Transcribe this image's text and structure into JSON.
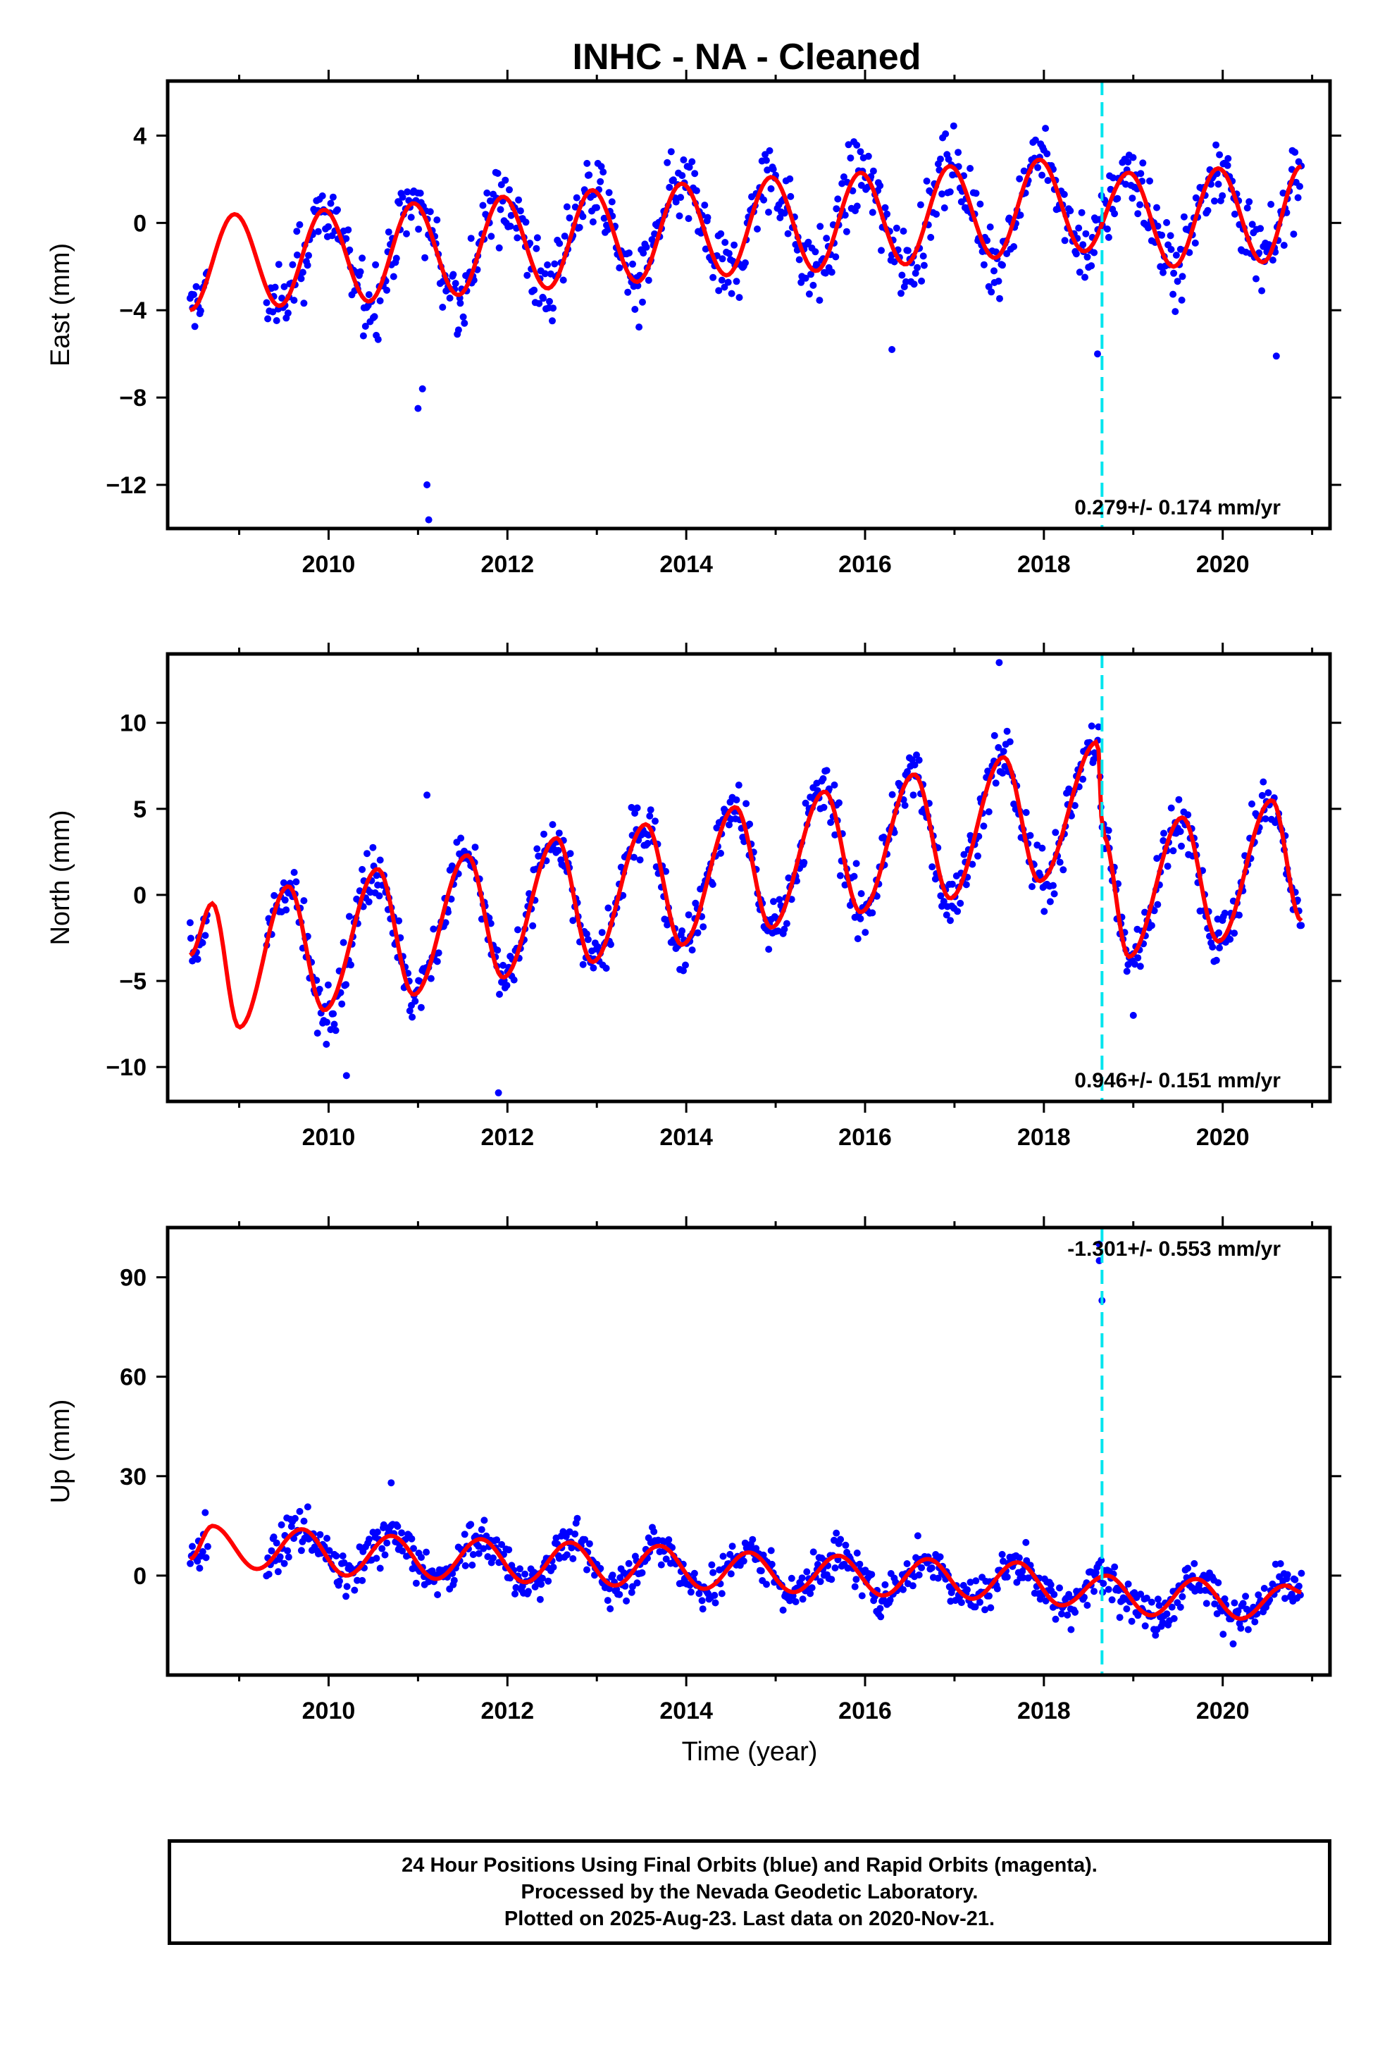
{
  "title": "INHC  - NA - Cleaned",
  "xlabel": "Time (year)",
  "footer": {
    "line1": "24 Hour Positions Using Final Orbits (blue) and Rapid Orbits (magenta).",
    "line2": "Processed by the Nevada Geodetic Laboratory.",
    "line3": "Plotted on 2025-Aug-23. Last data on 2020-Nov-21."
  },
  "colors": {
    "data": "#0000ff",
    "model": "#ff0000",
    "event_line": "#00e5ee"
  },
  "chart_data": [
    {
      "type": "scatter",
      "ylabel": "East (mm)",
      "rate": "0.279+/- 0.174 mm/yr",
      "xlim": [
        2008.2,
        2021.2
      ],
      "ylim": [
        -14,
        6.5
      ],
      "x_ticks": [
        2010,
        2012,
        2014,
        2016,
        2018,
        2020
      ],
      "y_ticks": [
        4,
        0,
        -4,
        -8,
        -12
      ],
      "event_line_x": 2018.65,
      "data_start": 2008.45,
      "data_end": 2020.88,
      "gap": [
        2008.65,
        2009.3
      ],
      "model": {
        "x": [
          2008.45,
          2008.95,
          2009.45,
          2009.95,
          2010.45,
          2010.95,
          2011.45,
          2011.95,
          2012.45,
          2012.95,
          2013.45,
          2013.95,
          2014.45,
          2014.95,
          2015.45,
          2015.95,
          2016.45,
          2016.95,
          2017.45,
          2017.95,
          2018.45,
          2018.95,
          2019.45,
          2019.95,
          2020.45,
          2020.88
        ],
        "y": [
          -4.0,
          0.4,
          -3.8,
          0.6,
          -3.6,
          0.9,
          -3.3,
          1.2,
          -3.0,
          1.5,
          -2.7,
          1.8,
          -2.4,
          2.1,
          -2.2,
          2.3,
          -1.9,
          2.6,
          -1.6,
          2.9,
          -1.3,
          2.3,
          -2.0,
          2.5,
          -1.8,
          2.6
        ]
      },
      "outliers": {
        "x": [
          2011.0,
          2011.05,
          2011.1,
          2011.12,
          2018.6,
          2016.3,
          2020.6
        ],
        "y": [
          -8.5,
          -7.6,
          -12.0,
          -13.6,
          -6.0,
          -5.8,
          -6.1
        ]
      }
    },
    {
      "type": "scatter",
      "ylabel": "North (mm)",
      "rate": "0.946+/- 0.151 mm/yr",
      "xlim": [
        2008.2,
        2021.2
      ],
      "ylim": [
        -12,
        14
      ],
      "x_ticks": [
        2010,
        2012,
        2014,
        2016,
        2018,
        2020
      ],
      "y_ticks": [
        10,
        5,
        0,
        -5,
        -10
      ],
      "event_line_x": 2018.65,
      "data_start": 2008.45,
      "data_end": 2020.88,
      "gap": [
        2008.65,
        2009.3
      ],
      "model": {
        "x": [
          2008.45,
          2008.7,
          2009.0,
          2009.55,
          2009.95,
          2010.55,
          2010.95,
          2011.55,
          2011.95,
          2012.55,
          2012.95,
          2013.55,
          2013.95,
          2014.55,
          2014.95,
          2015.55,
          2015.95,
          2016.55,
          2016.95,
          2017.55,
          2017.95,
          2018.6,
          2018.66,
          2018.95,
          2019.55,
          2019.95,
          2020.55,
          2020.88
        ],
        "y": [
          -3.5,
          -0.5,
          -7.7,
          0.5,
          -6.7,
          1.5,
          -5.8,
          2.3,
          -4.8,
          3.3,
          -3.9,
          4.1,
          -2.9,
          5.1,
          -1.9,
          6.0,
          -1.0,
          7.0,
          -0.2,
          8.0,
          0.8,
          8.9,
          3.5,
          -3.6,
          4.5,
          -2.7,
          5.5,
          -1.5
        ]
      },
      "outliers": {
        "x": [
          2011.1,
          2011.9,
          2017.5,
          2010.2,
          2019.0
        ],
        "y": [
          5.8,
          -11.5,
          13.5,
          -10.5,
          -7.0
        ]
      }
    },
    {
      "type": "scatter",
      "ylabel": "Up (mm)",
      "rate": "-1.301+/- 0.553 mm/yr",
      "xlim": [
        2008.2,
        2021.2
      ],
      "ylim": [
        -30,
        105
      ],
      "x_ticks": [
        2010,
        2012,
        2014,
        2016,
        2018,
        2020
      ],
      "y_ticks": [
        90,
        60,
        30,
        0
      ],
      "event_line_x": 2018.65,
      "data_start": 2008.45,
      "data_end": 2020.88,
      "gap": [
        2008.65,
        2009.3
      ],
      "model": {
        "x": [
          2008.45,
          2008.7,
          2009.2,
          2009.7,
          2010.2,
          2010.7,
          2011.2,
          2011.7,
          2012.2,
          2012.7,
          2013.2,
          2013.7,
          2014.2,
          2014.7,
          2015.2,
          2015.7,
          2016.2,
          2016.7,
          2017.2,
          2017.7,
          2018.2,
          2018.7,
          2019.2,
          2019.7,
          2020.2,
          2020.7,
          2020.88
        ],
        "y": [
          5,
          15,
          2,
          14,
          0,
          12,
          -1,
          11,
          -2,
          10,
          -3,
          9,
          -4,
          7,
          -5,
          6,
          -6,
          5,
          -7,
          4,
          -9,
          0,
          -12,
          -1,
          -13,
          -3,
          -5
        ]
      },
      "outliers": {
        "x": [
          2018.62,
          2018.62,
          2018.65,
          2010.7
        ],
        "y": [
          100,
          95,
          83,
          28
        ]
      }
    }
  ]
}
